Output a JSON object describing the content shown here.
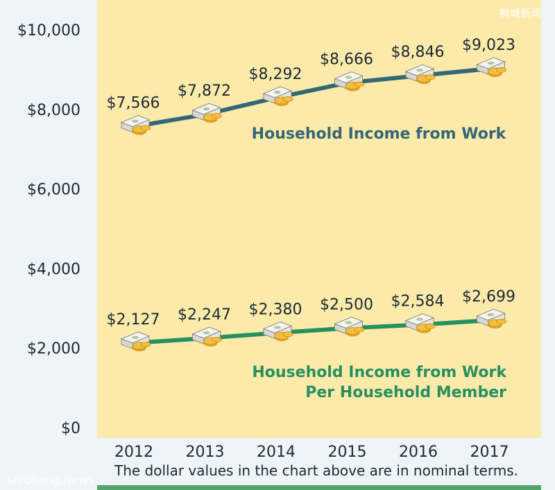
{
  "watermark_top": "狮城新闻",
  "watermark_bottom": "shicheng.news",
  "footnote": "The dollar values in the chart above are in nominal terms.",
  "colors": {
    "plot_bg": "#fbeaaa",
    "page_bg": "#eef4f8",
    "work_line": "#346775",
    "member_line": "#27905f",
    "bottom_strip": "#55a56a"
  },
  "icon": "money-stack-with-coins-icon",
  "chart_data": {
    "type": "line",
    "categories": [
      "2012",
      "2013",
      "2014",
      "2015",
      "2016",
      "2017"
    ],
    "ylim": [
      0,
      10000
    ],
    "yticks": [
      {
        "value": 0,
        "label": "$0"
      },
      {
        "value": 2000,
        "label": "$2,000"
      },
      {
        "value": 4000,
        "label": "$4,000"
      },
      {
        "value": 6000,
        "label": "$6,000"
      },
      {
        "value": 8000,
        "label": "$8,000"
      },
      {
        "value": 10000,
        "label": "$10,000"
      }
    ],
    "grid": false,
    "series": [
      {
        "name": "Household Income from Work",
        "name_lines": [
          "Household Income from Work"
        ],
        "color": "#346775",
        "values": [
          7566,
          7872,
          8292,
          8666,
          8846,
          9023
        ],
        "labels": [
          "$7,566",
          "$7,872",
          "$8,292",
          "$8,666",
          "$8,846",
          "$9,023"
        ]
      },
      {
        "name": "Household Income from Work Per Household Member",
        "name_lines": [
          "Household Income from Work",
          "Per Household Member"
        ],
        "color": "#27905f",
        "values": [
          2127,
          2247,
          2380,
          2500,
          2584,
          2699
        ],
        "labels": [
          "$2,127",
          "$2,247",
          "$2,380",
          "$2,500",
          "$2,584",
          "$2,699"
        ]
      }
    ]
  }
}
